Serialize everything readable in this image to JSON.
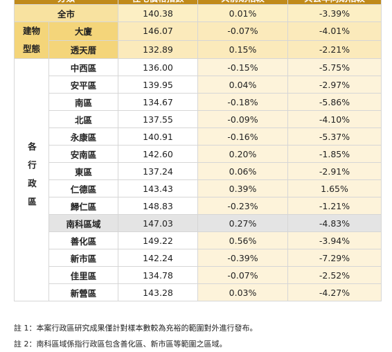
{
  "table": {
    "header": [
      "分類",
      "住宅價格指數",
      "與前期相較",
      "與去年同期相較"
    ],
    "overall": {
      "name": "全市",
      "values": [
        "140.38",
        "0.01%",
        "-3.39%"
      ]
    },
    "groups": [
      {
        "label": "建物型態",
        "rows": [
          {
            "name": "大廈",
            "values": [
              "146.07",
              "-0.07%",
              "-4.01%"
            ]
          },
          {
            "name": "透天厝",
            "values": [
              "132.89",
              "0.15%",
              "-2.21%"
            ]
          }
        ]
      },
      {
        "label": "各行政區",
        "rows": [
          {
            "name": "中西區",
            "values": [
              "136.00",
              "-0.15%",
              "-5.75%"
            ]
          },
          {
            "name": "安平區",
            "values": [
              "139.95",
              "0.04%",
              "-2.97%"
            ]
          },
          {
            "name": "南區",
            "values": [
              "134.67",
              "-0.18%",
              "-5.86%"
            ]
          },
          {
            "name": "北區",
            "values": [
              "137.55",
              "-0.09%",
              "-4.10%"
            ]
          },
          {
            "name": "永康區",
            "values": [
              "140.91",
              "-0.16%",
              "-5.37%"
            ]
          },
          {
            "name": "安南區",
            "values": [
              "142.60",
              "0.20%",
              "-1.85%"
            ]
          },
          {
            "name": "東區",
            "values": [
              "137.24",
              "0.06%",
              "-2.91%"
            ]
          },
          {
            "name": "仁德區",
            "values": [
              "143.43",
              "0.39%",
              "1.65%"
            ]
          },
          {
            "name": "歸仁區",
            "values": [
              "148.83",
              "-0.23%",
              "-1.21%"
            ]
          },
          {
            "name": "南科區域",
            "values": [
              "147.03",
              "0.27%",
              "-4.83%"
            ],
            "highlight": true
          },
          {
            "name": "善化區",
            "values": [
              "149.22",
              "0.56%",
              "-3.94%"
            ]
          },
          {
            "name": "新市區",
            "values": [
              "142.24",
              "-0.39%",
              "-7.29%"
            ]
          },
          {
            "name": "佳里區",
            "values": [
              "134.78",
              "-0.07%",
              "-2.52%"
            ]
          },
          {
            "name": "新營區",
            "values": [
              "143.28",
              "0.03%",
              "-4.27%"
            ]
          }
        ]
      }
    ]
  },
  "notes": [
    "註 1：本案行政區研究成果僅計對樣本數較為充裕的範圍對外進行發布。",
    "註 2：南科區域係指行政區包含善化區、新市區等範圍之區域。"
  ]
}
